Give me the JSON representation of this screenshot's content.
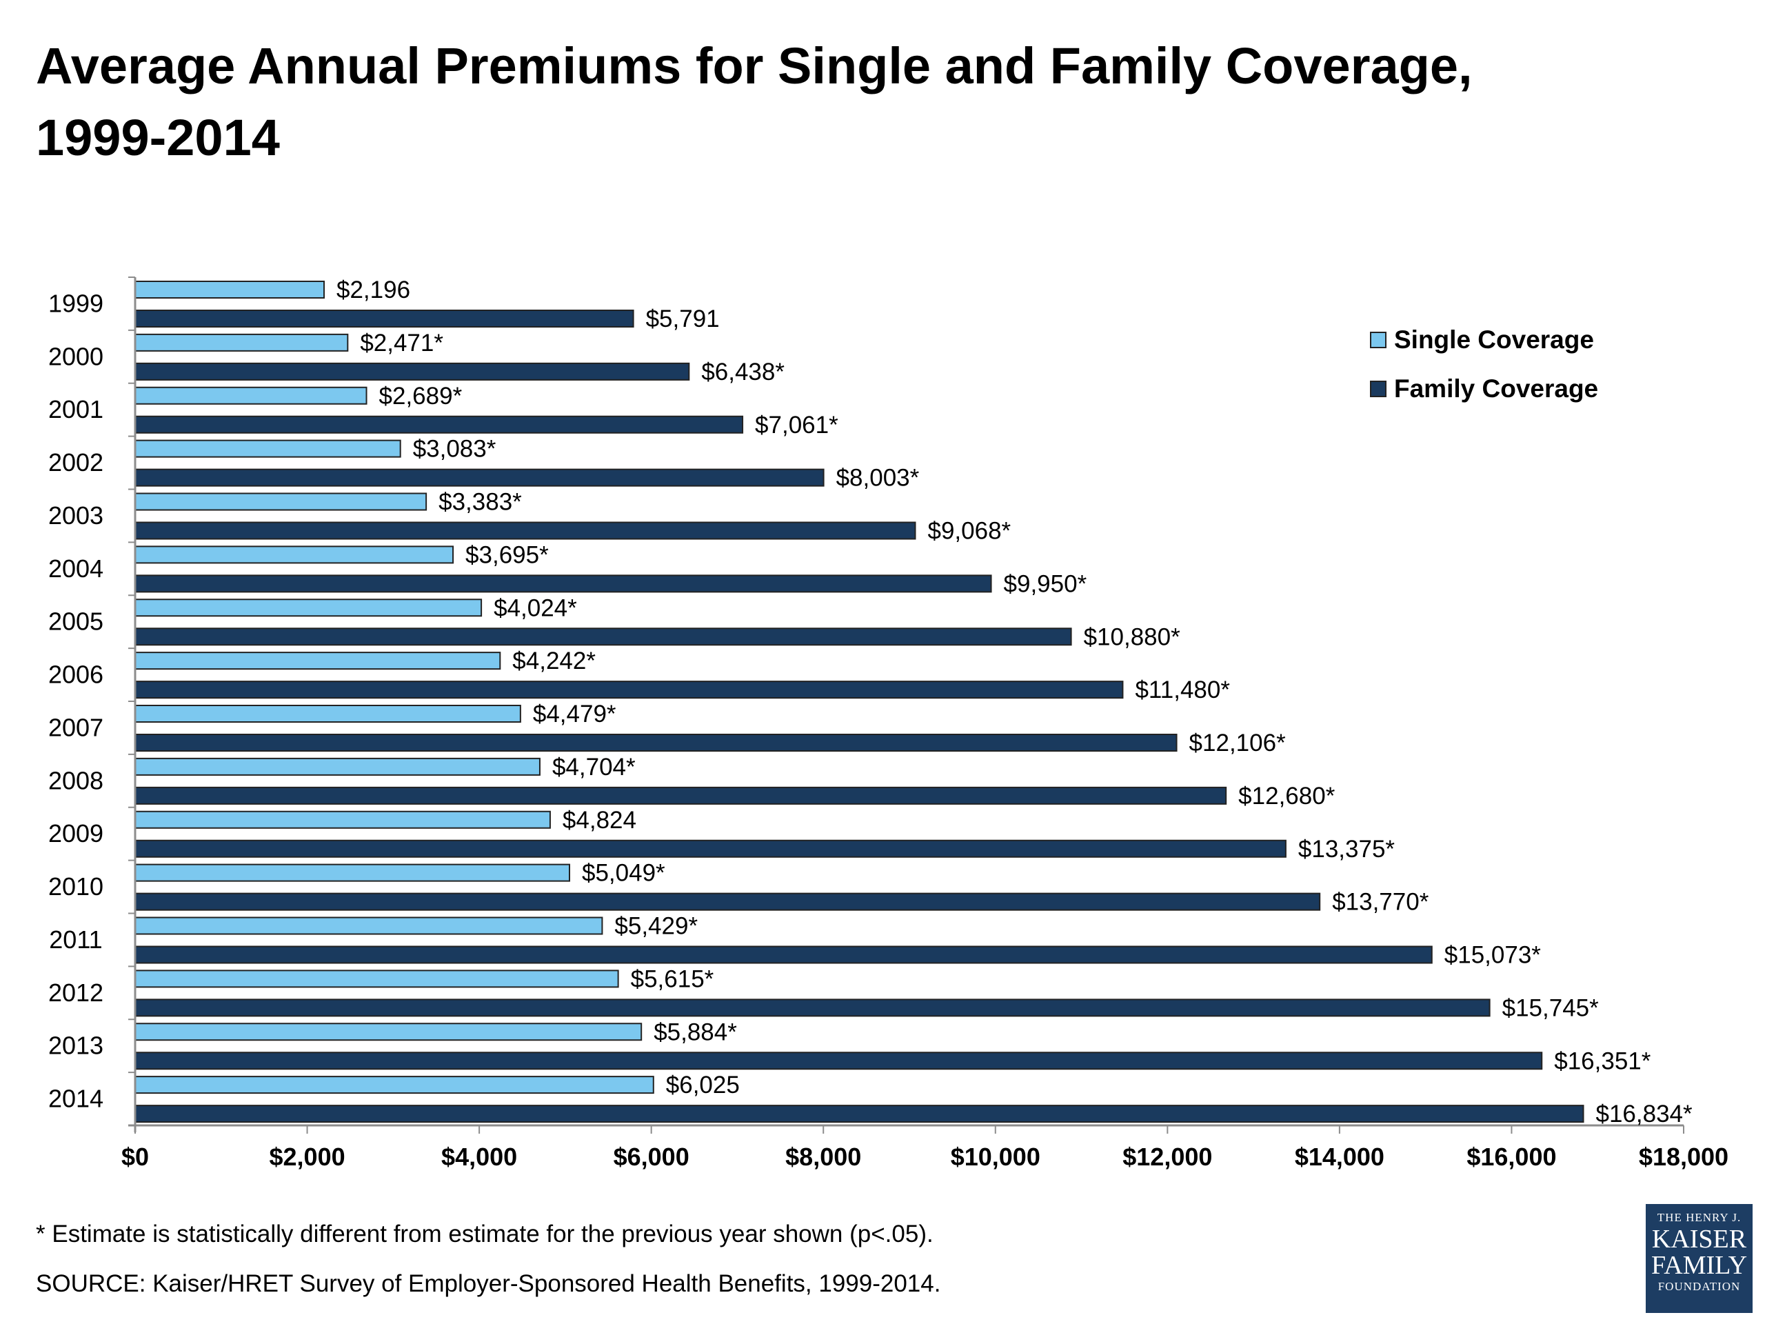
{
  "title_line1": "Average Annual Premiums for Single and Family Coverage,",
  "title_line2": "1999-2014",
  "footnote": "* Estimate is statistically different from estimate for the previous year shown (p<.05).",
  "source": "SOURCE:  Kaiser/HRET Survey of Employer-Sponsored Health Benefits, 1999-2014.",
  "logo": {
    "line1": "THE HENRY J.",
    "line2": "KAISER",
    "line3": "FAMILY",
    "line4": "FOUNDATION"
  },
  "colors": {
    "single": "#7cc8ef",
    "family": "#1a3a5e",
    "axis": "#8c8c8c"
  },
  "chart_data": {
    "type": "bar",
    "orientation": "horizontal",
    "categories": [
      "1999",
      "2000",
      "2001",
      "2002",
      "2003",
      "2004",
      "2005",
      "2006",
      "2007",
      "2008",
      "2009",
      "2010",
      "2011",
      "2012",
      "2013",
      "2014"
    ],
    "series": [
      {
        "name": "Single Coverage",
        "values": [
          2196,
          2471,
          2689,
          3083,
          3383,
          3695,
          4024,
          4242,
          4479,
          4704,
          4824,
          5049,
          5429,
          5615,
          5884,
          6025
        ],
        "labels": [
          "$2,196",
          "$2,471*",
          "$2,689*",
          "$3,083*",
          "$3,383*",
          "$3,695*",
          "$4,024*",
          "$4,242*",
          "$4,479*",
          "$4,704*",
          "$4,824",
          "$5,049*",
          "$5,429*",
          "$5,615*",
          "$5,884*",
          "$6,025"
        ]
      },
      {
        "name": "Family Coverage",
        "values": [
          5791,
          6438,
          7061,
          8003,
          9068,
          9950,
          10880,
          11480,
          12106,
          12680,
          13375,
          13770,
          15073,
          15745,
          16351,
          16834
        ],
        "labels": [
          "$5,791",
          "$6,438*",
          "$7,061*",
          "$8,003*",
          "$9,068*",
          "$9,950*",
          "$10,880*",
          "$11,480*",
          "$12,106*",
          "$12,680*",
          "$13,375*",
          "$13,770*",
          "$15,073*",
          "$15,745*",
          "$16,351*",
          "$16,834*"
        ]
      }
    ],
    "xlim": [
      0,
      18000
    ],
    "xticks": [
      0,
      2000,
      4000,
      6000,
      8000,
      10000,
      12000,
      14000,
      16000,
      18000
    ],
    "xtick_labels": [
      "$0",
      "$2,000",
      "$4,000",
      "$6,000",
      "$8,000",
      "$10,000",
      "$12,000",
      "$14,000",
      "$16,000",
      "$18,000"
    ],
    "xlabel": "",
    "ylabel": "",
    "grid": false,
    "legend_position": "top-right",
    "legend": [
      "Single Coverage",
      "Family Coverage"
    ]
  }
}
